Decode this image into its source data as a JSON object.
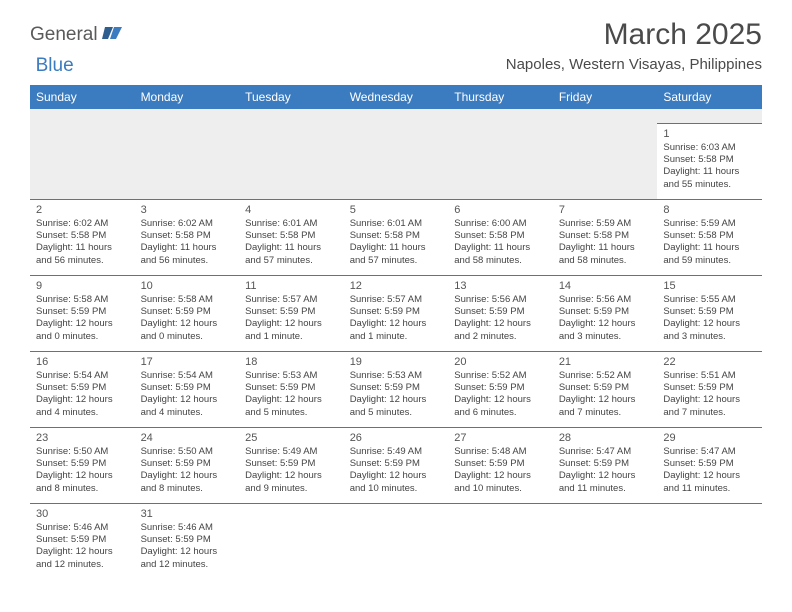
{
  "logo": {
    "part1": "General",
    "part2": "Blue"
  },
  "title": "March 2025",
  "location": "Napoles, Western Visayas, Philippines",
  "colors": {
    "header_bg": "#3b7bbf",
    "header_fg": "#ffffff",
    "blank_row_bg": "#eeeeee",
    "cell_border": "#3b7bbf",
    "text": "#444444",
    "title_text": "#4a4a4a"
  },
  "weekdays": [
    "Sunday",
    "Monday",
    "Tuesday",
    "Wednesday",
    "Thursday",
    "Friday",
    "Saturday"
  ],
  "weeks": [
    [
      null,
      null,
      null,
      null,
      null,
      null,
      {
        "d": "1",
        "sr": "Sunrise: 6:03 AM",
        "ss": "Sunset: 5:58 PM",
        "dl1": "Daylight: 11 hours",
        "dl2": "and 55 minutes."
      }
    ],
    [
      {
        "d": "2",
        "sr": "Sunrise: 6:02 AM",
        "ss": "Sunset: 5:58 PM",
        "dl1": "Daylight: 11 hours",
        "dl2": "and 56 minutes."
      },
      {
        "d": "3",
        "sr": "Sunrise: 6:02 AM",
        "ss": "Sunset: 5:58 PM",
        "dl1": "Daylight: 11 hours",
        "dl2": "and 56 minutes."
      },
      {
        "d": "4",
        "sr": "Sunrise: 6:01 AM",
        "ss": "Sunset: 5:58 PM",
        "dl1": "Daylight: 11 hours",
        "dl2": "and 57 minutes."
      },
      {
        "d": "5",
        "sr": "Sunrise: 6:01 AM",
        "ss": "Sunset: 5:58 PM",
        "dl1": "Daylight: 11 hours",
        "dl2": "and 57 minutes."
      },
      {
        "d": "6",
        "sr": "Sunrise: 6:00 AM",
        "ss": "Sunset: 5:58 PM",
        "dl1": "Daylight: 11 hours",
        "dl2": "and 58 minutes."
      },
      {
        "d": "7",
        "sr": "Sunrise: 5:59 AM",
        "ss": "Sunset: 5:58 PM",
        "dl1": "Daylight: 11 hours",
        "dl2": "and 58 minutes."
      },
      {
        "d": "8",
        "sr": "Sunrise: 5:59 AM",
        "ss": "Sunset: 5:58 PM",
        "dl1": "Daylight: 11 hours",
        "dl2": "and 59 minutes."
      }
    ],
    [
      {
        "d": "9",
        "sr": "Sunrise: 5:58 AM",
        "ss": "Sunset: 5:59 PM",
        "dl1": "Daylight: 12 hours",
        "dl2": "and 0 minutes."
      },
      {
        "d": "10",
        "sr": "Sunrise: 5:58 AM",
        "ss": "Sunset: 5:59 PM",
        "dl1": "Daylight: 12 hours",
        "dl2": "and 0 minutes."
      },
      {
        "d": "11",
        "sr": "Sunrise: 5:57 AM",
        "ss": "Sunset: 5:59 PM",
        "dl1": "Daylight: 12 hours",
        "dl2": "and 1 minute."
      },
      {
        "d": "12",
        "sr": "Sunrise: 5:57 AM",
        "ss": "Sunset: 5:59 PM",
        "dl1": "Daylight: 12 hours",
        "dl2": "and 1 minute."
      },
      {
        "d": "13",
        "sr": "Sunrise: 5:56 AM",
        "ss": "Sunset: 5:59 PM",
        "dl1": "Daylight: 12 hours",
        "dl2": "and 2 minutes."
      },
      {
        "d": "14",
        "sr": "Sunrise: 5:56 AM",
        "ss": "Sunset: 5:59 PM",
        "dl1": "Daylight: 12 hours",
        "dl2": "and 3 minutes."
      },
      {
        "d": "15",
        "sr": "Sunrise: 5:55 AM",
        "ss": "Sunset: 5:59 PM",
        "dl1": "Daylight: 12 hours",
        "dl2": "and 3 minutes."
      }
    ],
    [
      {
        "d": "16",
        "sr": "Sunrise: 5:54 AM",
        "ss": "Sunset: 5:59 PM",
        "dl1": "Daylight: 12 hours",
        "dl2": "and 4 minutes."
      },
      {
        "d": "17",
        "sr": "Sunrise: 5:54 AM",
        "ss": "Sunset: 5:59 PM",
        "dl1": "Daylight: 12 hours",
        "dl2": "and 4 minutes."
      },
      {
        "d": "18",
        "sr": "Sunrise: 5:53 AM",
        "ss": "Sunset: 5:59 PM",
        "dl1": "Daylight: 12 hours",
        "dl2": "and 5 minutes."
      },
      {
        "d": "19",
        "sr": "Sunrise: 5:53 AM",
        "ss": "Sunset: 5:59 PM",
        "dl1": "Daylight: 12 hours",
        "dl2": "and 5 minutes."
      },
      {
        "d": "20",
        "sr": "Sunrise: 5:52 AM",
        "ss": "Sunset: 5:59 PM",
        "dl1": "Daylight: 12 hours",
        "dl2": "and 6 minutes."
      },
      {
        "d": "21",
        "sr": "Sunrise: 5:52 AM",
        "ss": "Sunset: 5:59 PM",
        "dl1": "Daylight: 12 hours",
        "dl2": "and 7 minutes."
      },
      {
        "d": "22",
        "sr": "Sunrise: 5:51 AM",
        "ss": "Sunset: 5:59 PM",
        "dl1": "Daylight: 12 hours",
        "dl2": "and 7 minutes."
      }
    ],
    [
      {
        "d": "23",
        "sr": "Sunrise: 5:50 AM",
        "ss": "Sunset: 5:59 PM",
        "dl1": "Daylight: 12 hours",
        "dl2": "and 8 minutes."
      },
      {
        "d": "24",
        "sr": "Sunrise: 5:50 AM",
        "ss": "Sunset: 5:59 PM",
        "dl1": "Daylight: 12 hours",
        "dl2": "and 8 minutes."
      },
      {
        "d": "25",
        "sr": "Sunrise: 5:49 AM",
        "ss": "Sunset: 5:59 PM",
        "dl1": "Daylight: 12 hours",
        "dl2": "and 9 minutes."
      },
      {
        "d": "26",
        "sr": "Sunrise: 5:49 AM",
        "ss": "Sunset: 5:59 PM",
        "dl1": "Daylight: 12 hours",
        "dl2": "and 10 minutes."
      },
      {
        "d": "27",
        "sr": "Sunrise: 5:48 AM",
        "ss": "Sunset: 5:59 PM",
        "dl1": "Daylight: 12 hours",
        "dl2": "and 10 minutes."
      },
      {
        "d": "28",
        "sr": "Sunrise: 5:47 AM",
        "ss": "Sunset: 5:59 PM",
        "dl1": "Daylight: 12 hours",
        "dl2": "and 11 minutes."
      },
      {
        "d": "29",
        "sr": "Sunrise: 5:47 AM",
        "ss": "Sunset: 5:59 PM",
        "dl1": "Daylight: 12 hours",
        "dl2": "and 11 minutes."
      }
    ],
    [
      {
        "d": "30",
        "sr": "Sunrise: 5:46 AM",
        "ss": "Sunset: 5:59 PM",
        "dl1": "Daylight: 12 hours",
        "dl2": "and 12 minutes."
      },
      {
        "d": "31",
        "sr": "Sunrise: 5:46 AM",
        "ss": "Sunset: 5:59 PM",
        "dl1": "Daylight: 12 hours",
        "dl2": "and 12 minutes."
      },
      null,
      null,
      null,
      null,
      null
    ]
  ]
}
